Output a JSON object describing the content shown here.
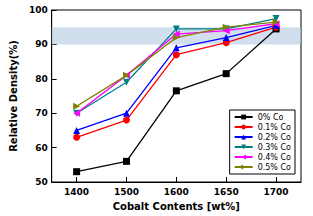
{
  "chart_data": {
    "type": "line",
    "x_label": "Cobalt Contents [wt%]",
    "y_label": "Relative Density(%)",
    "categories": [
      "1400",
      "1500",
      "1600",
      "1650",
      "1700"
    ],
    "ylim": [
      50,
      100
    ],
    "yticks": [
      50,
      60,
      70,
      80,
      90,
      100
    ],
    "band": [
      90,
      95
    ],
    "legend": "lower right",
    "series": [
      {
        "name": "0% Co",
        "color": "#000000",
        "marker": "square",
        "values": [
          53,
          56,
          76.5,
          81.5,
          94.5
        ]
      },
      {
        "name": "0.1% Co",
        "color": "#ff0000",
        "marker": "circle",
        "values": [
          63,
          68,
          87,
          90.5,
          95
        ]
      },
      {
        "name": "0.2% Co",
        "color": "#0000ff",
        "marker": "triangle-up",
        "values": [
          65,
          70,
          89,
          92,
          95.5
        ]
      },
      {
        "name": "0.3% Co",
        "color": "#008080",
        "marker": "triangle-down",
        "values": [
          70,
          79,
          94.5,
          94.5,
          97.5
        ]
      },
      {
        "name": "0.4% Co",
        "color": "#ff00ff",
        "marker": "triangle-left",
        "values": [
          70,
          81,
          93,
          94,
          96
        ]
      },
      {
        "name": "0.5% Co",
        "color": "#808000",
        "marker": "triangle-right",
        "values": [
          72,
          81,
          92,
          95,
          96.5
        ]
      }
    ]
  }
}
